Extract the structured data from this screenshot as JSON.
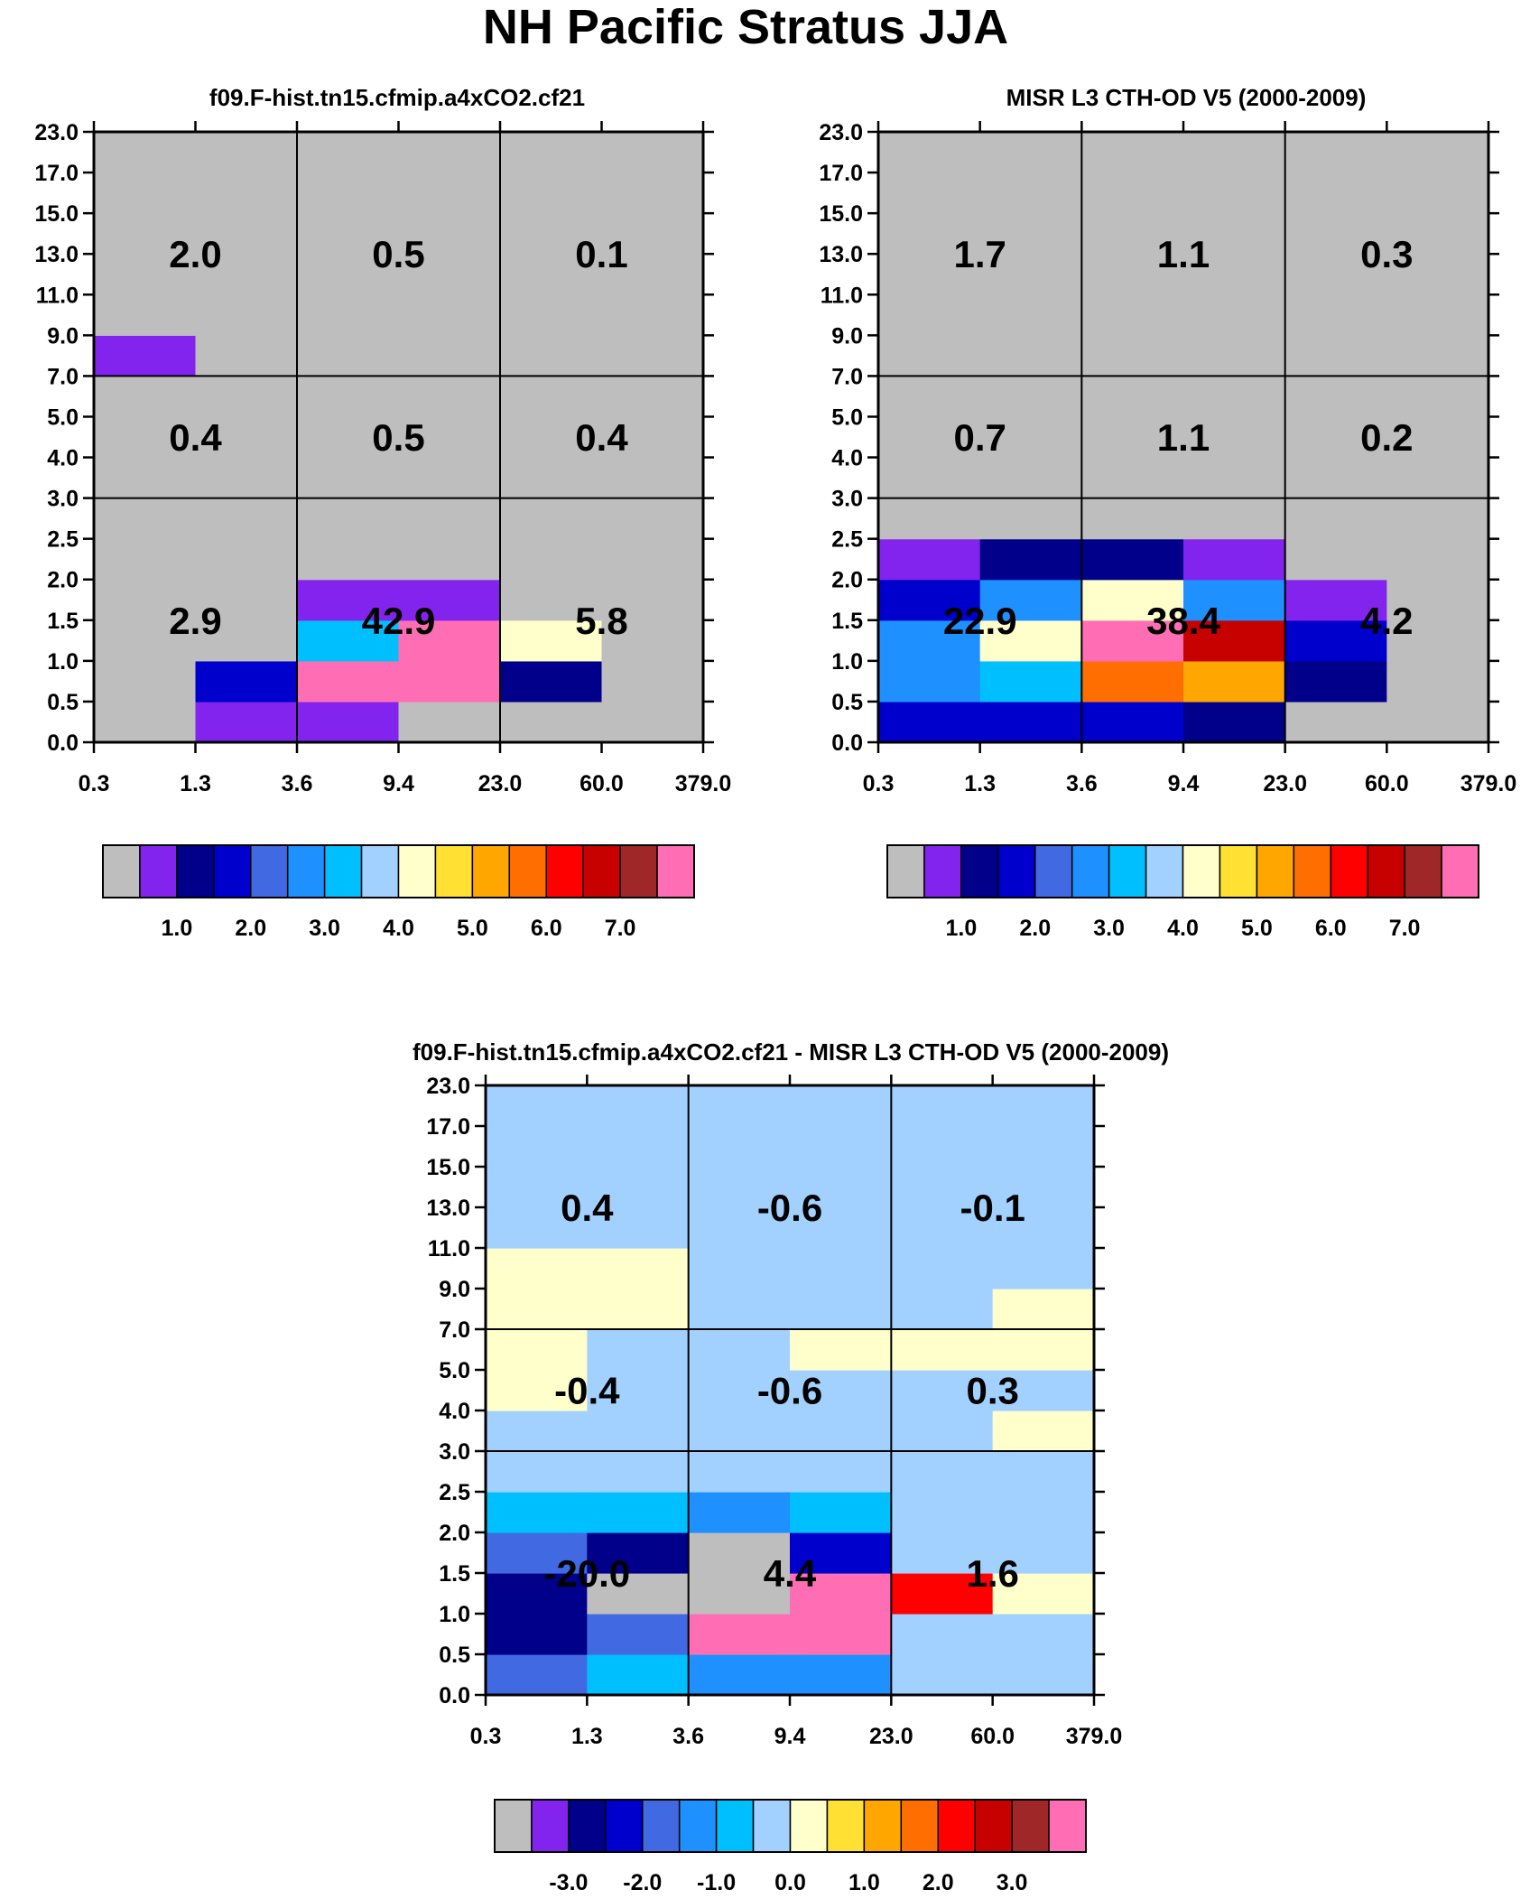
{
  "figure_title": "NH Pacific Stratus JJA",
  "colors": {
    "palette": [
      "#BEBEBE",
      "#8323EE",
      "#00008B",
      "#0000CD",
      "#4169E1",
      "#1E90FF",
      "#00BFFF",
      "#A3D1FF",
      "#FFFFCC",
      "#FFE033",
      "#FFA600",
      "#FF6E00",
      "#FF0000",
      "#C70000",
      "#A02727",
      "#FF6EB4"
    ],
    "background": "#FFFFFF",
    "ink": "#000000"
  },
  "chart_data": [
    {
      "type": "heatmap",
      "title": "f09.F-hist.tn15.cfmip.a4xCO2.cf21",
      "xlabel": "",
      "ylabel": "",
      "x_tick_labels": [
        "0.3",
        "1.3",
        "3.6",
        "9.4",
        "23.0",
        "60.0",
        "379.0"
      ],
      "y_tick_labels": [
        "0.0",
        "0.5",
        "1.0",
        "1.5",
        "2.0",
        "2.5",
        "3.0",
        "4.0",
        "5.0",
        "7.0",
        "9.0",
        "11.0",
        "13.0",
        "15.0",
        "17.0",
        "23.0"
      ],
      "color_levels": [
        1.0,
        2.0,
        3.0,
        4.0,
        5.0,
        6.0,
        7.0
      ],
      "colorbar_labels": [
        "1.0",
        "2.0",
        "3.0",
        "4.0",
        "5.0",
        "6.0",
        "7.0"
      ],
      "cells_note": "cells[row][col], row 0 = 0.0-0.5 bin (bottom), col 0 = 0.3-1.3 bin; value = palette index",
      "cells": [
        [
          0,
          1,
          1,
          0,
          0,
          0
        ],
        [
          0,
          3,
          15,
          15,
          2,
          0
        ],
        [
          0,
          0,
          6,
          15,
          8,
          0
        ],
        [
          0,
          0,
          1,
          1,
          0,
          0
        ],
        [
          0,
          0,
          0,
          0,
          0,
          0
        ],
        [
          0,
          0,
          0,
          0,
          0,
          0
        ],
        [
          0,
          0,
          0,
          0,
          0,
          0
        ],
        [
          0,
          0,
          0,
          0,
          0,
          0
        ],
        [
          0,
          0,
          0,
          0,
          0,
          0
        ],
        [
          1,
          0,
          0,
          0,
          0,
          0
        ],
        [
          0,
          0,
          0,
          0,
          0,
          0
        ],
        [
          0,
          0,
          0,
          0,
          0,
          0
        ],
        [
          0,
          0,
          0,
          0,
          0,
          0
        ],
        [
          0,
          0,
          0,
          0,
          0,
          0
        ],
        [
          0,
          0,
          0,
          0,
          0,
          0
        ]
      ],
      "box_values": [
        [
          "2.0",
          "0.5",
          "0.1"
        ],
        [
          "0.4",
          "0.5",
          "0.4"
        ],
        [
          "2.9",
          "42.9",
          "5.8"
        ]
      ]
    },
    {
      "type": "heatmap",
      "title": "MISR L3 CTH-OD V5 (2000-2009)",
      "xlabel": "",
      "ylabel": "",
      "x_tick_labels": [
        "0.3",
        "1.3",
        "3.6",
        "9.4",
        "23.0",
        "60.0",
        "379.0"
      ],
      "y_tick_labels": [
        "0.0",
        "0.5",
        "1.0",
        "1.5",
        "2.0",
        "2.5",
        "3.0",
        "4.0",
        "5.0",
        "7.0",
        "9.0",
        "11.0",
        "13.0",
        "15.0",
        "17.0",
        "23.0"
      ],
      "color_levels": [
        1.0,
        2.0,
        3.0,
        4.0,
        5.0,
        6.0,
        7.0
      ],
      "colorbar_labels": [
        "1.0",
        "2.0",
        "3.0",
        "4.0",
        "5.0",
        "6.0",
        "7.0"
      ],
      "cells_note": "cells[row][col], row 0 = 0.0-0.5 bin (bottom), col 0 = 0.3-1.3 bin; value = palette index",
      "cells": [
        [
          3,
          3,
          3,
          2,
          0,
          0
        ],
        [
          5,
          6,
          11,
          10,
          2,
          0
        ],
        [
          5,
          8,
          15,
          13,
          3,
          0
        ],
        [
          3,
          5,
          8,
          5,
          1,
          0
        ],
        [
          1,
          2,
          2,
          1,
          0,
          0
        ],
        [
          0,
          0,
          0,
          0,
          0,
          0
        ],
        [
          0,
          0,
          0,
          0,
          0,
          0
        ],
        [
          0,
          0,
          0,
          0,
          0,
          0
        ],
        [
          0,
          0,
          0,
          0,
          0,
          0
        ],
        [
          0,
          0,
          0,
          0,
          0,
          0
        ],
        [
          0,
          0,
          0,
          0,
          0,
          0
        ],
        [
          0,
          0,
          0,
          0,
          0,
          0
        ],
        [
          0,
          0,
          0,
          0,
          0,
          0
        ],
        [
          0,
          0,
          0,
          0,
          0,
          0
        ],
        [
          0,
          0,
          0,
          0,
          0,
          0
        ]
      ],
      "box_values": [
        [
          "1.7",
          "1.1",
          "0.3"
        ],
        [
          "0.7",
          "1.1",
          "0.2"
        ],
        [
          "22.9",
          "38.4",
          "4.2"
        ]
      ]
    },
    {
      "type": "heatmap",
      "title": "f09.F-hist.tn15.cfmip.a4xCO2.cf21 - MISR L3 CTH-OD V5 (2000-2009)",
      "xlabel": "",
      "ylabel": "",
      "x_tick_labels": [
        "0.3",
        "1.3",
        "3.6",
        "9.4",
        "23.0",
        "60.0",
        "379.0"
      ],
      "y_tick_labels": [
        "0.0",
        "0.5",
        "1.0",
        "1.5",
        "2.0",
        "2.5",
        "3.0",
        "4.0",
        "5.0",
        "7.0",
        "9.0",
        "11.0",
        "13.0",
        "15.0",
        "17.0",
        "23.0"
      ],
      "color_levels": [
        -3.0,
        -2.0,
        -1.0,
        0.0,
        1.0,
        2.0,
        3.0
      ],
      "colorbar_labels": [
        "-3.0",
        "-2.0",
        "-1.0",
        "0.0",
        "1.0",
        "2.0",
        "3.0"
      ],
      "cells_note": "cells[row][col], row 0 = 0.0-0.5 bin (bottom), col 0 = 0.3-1.3 bin; value = palette index",
      "cells": [
        [
          4,
          6,
          5,
          5,
          7,
          7
        ],
        [
          2,
          4,
          15,
          15,
          7,
          7
        ],
        [
          2,
          0,
          0,
          15,
          12,
          8
        ],
        [
          4,
          2,
          0,
          3,
          7,
          7
        ],
        [
          6,
          6,
          5,
          6,
          7,
          7
        ],
        [
          7,
          7,
          7,
          7,
          7,
          7
        ],
        [
          7,
          7,
          7,
          7,
          7,
          8
        ],
        [
          8,
          7,
          7,
          7,
          7,
          7
        ],
        [
          8,
          7,
          7,
          8,
          8,
          8
        ],
        [
          8,
          8,
          7,
          7,
          7,
          8
        ],
        [
          8,
          8,
          7,
          7,
          7,
          7
        ],
        [
          7,
          7,
          7,
          7,
          7,
          7
        ],
        [
          7,
          7,
          7,
          7,
          7,
          7
        ],
        [
          7,
          7,
          7,
          7,
          7,
          7
        ],
        [
          7,
          7,
          7,
          7,
          7,
          7
        ]
      ],
      "box_values": [
        [
          "0.4",
          "-0.6",
          "-0.1"
        ],
        [
          "-0.4",
          "-0.6",
          "0.3"
        ],
        [
          "-20.0",
          "4.4",
          "1.6"
        ]
      ]
    }
  ]
}
